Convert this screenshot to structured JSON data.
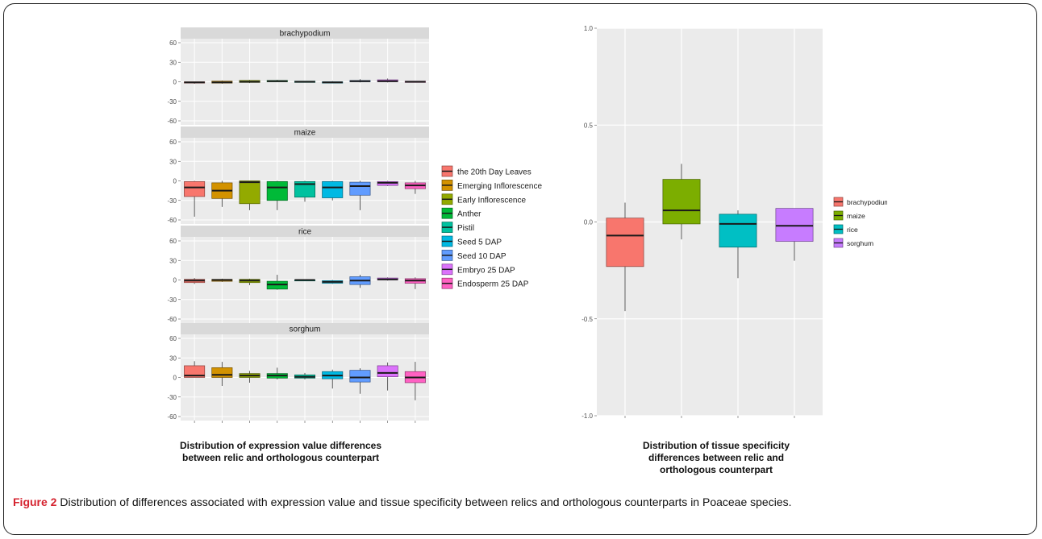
{
  "caption": {
    "number": "Figure 2",
    "text": " Distribution of differences associated with expression value and tissue specificity between relics and orthologous counterparts in Poaceae species."
  },
  "left_panel": {
    "subcaption_line1": "Distribution of expression value differences",
    "subcaption_line2": "between relic and orthologous counterpart"
  },
  "right_panel": {
    "subcaption_line1": "Distribution of tissue specificity",
    "subcaption_line2": "differences between relic and",
    "subcaption_line3": "orthologous counterpart"
  },
  "chart_data": [
    {
      "type": "box",
      "title": "",
      "facets": [
        "brachypodium",
        "maize",
        "rice",
        "sorghum"
      ],
      "categories": [
        "the 20th Day Leaves",
        "Emerging Inflorescence",
        "Early Inflorescence",
        "Anther",
        "Pistil",
        "Seed 5 DAP",
        "Seed 10 DAP",
        "Embryo 25 DAP",
        "Endosperm 25 DAP"
      ],
      "colors": [
        "#f8766d",
        "#d39200",
        "#93aa00",
        "#00ba38",
        "#00c19f",
        "#00b9e3",
        "#619cff",
        "#db72fb",
        "#ff61c3"
      ],
      "ylim": [
        -60,
        60
      ],
      "yticks": [
        60,
        30,
        0,
        -30,
        -60
      ],
      "xlabel": "",
      "ylabel": "",
      "legend_position": "right",
      "boxes": {
        "brachypodium": [
          [
            -3,
            -2,
            -1,
            0,
            0
          ],
          [
            -3,
            -2,
            -1,
            1,
            2
          ],
          [
            -2,
            -1,
            0,
            2,
            3
          ],
          [
            0,
            0,
            1,
            2,
            3
          ],
          [
            -1,
            -1,
            0,
            1,
            1
          ],
          [
            -2,
            -2,
            -1,
            0,
            1
          ],
          [
            -1,
            0,
            1,
            2,
            4
          ],
          [
            -1,
            0,
            1,
            3,
            5
          ],
          [
            -1,
            -1,
            0,
            1,
            1
          ]
        ],
        "maize": [
          [
            -55,
            -24,
            -10,
            -1,
            0
          ],
          [
            -40,
            -27,
            -15,
            -3,
            0
          ],
          [
            -45,
            -35,
            -2,
            0,
            0
          ],
          [
            -45,
            -30,
            -10,
            -1,
            0
          ],
          [
            -32,
            -25,
            -5,
            -1,
            0
          ],
          [
            -30,
            -26,
            -10,
            -1,
            0
          ],
          [
            -45,
            -22,
            -8,
            -2,
            0
          ],
          [
            -8,
            -7,
            -3,
            -1,
            0
          ],
          [
            -20,
            -12,
            -7,
            -3,
            0
          ]
        ],
        "rice": [
          [
            -6,
            -4,
            -1,
            1,
            3
          ],
          [
            -3,
            -2,
            0,
            1,
            2
          ],
          [
            -8,
            -4,
            -1,
            1,
            2
          ],
          [
            -15,
            -14,
            -7,
            -2,
            8
          ],
          [
            -1,
            -1,
            0,
            0,
            0
          ],
          [
            -6,
            -5,
            -3,
            -1,
            0
          ],
          [
            -12,
            -7,
            -1,
            5,
            8
          ],
          [
            -1,
            0,
            1,
            3,
            4
          ],
          [
            -14,
            -5,
            -1,
            2,
            4
          ]
        ],
        "sorghum": [
          [
            0,
            0,
            3,
            18,
            25
          ],
          [
            -13,
            0,
            4,
            15,
            24
          ],
          [
            -8,
            0,
            3,
            6,
            10
          ],
          [
            -3,
            -1,
            3,
            6,
            15
          ],
          [
            -3,
            -1,
            1,
            4,
            7
          ],
          [
            -17,
            -2,
            3,
            9,
            12
          ],
          [
            -25,
            -7,
            0,
            11,
            14
          ],
          [
            -20,
            1,
            7,
            18,
            23
          ],
          [
            -35,
            -8,
            0,
            9,
            24
          ]
        ]
      }
    },
    {
      "type": "box",
      "title": "",
      "categories": [
        "brachypodium",
        "maize",
        "rice",
        "sorghum"
      ],
      "colors": [
        "#f8766d",
        "#7cae00",
        "#00bfc4",
        "#c77cff"
      ],
      "ylim": [
        -1.0,
        1.0
      ],
      "yticks": [
        "1.0",
        "0.5",
        "0.0",
        "-0.5",
        "-1.0"
      ],
      "xlabel": "",
      "ylabel": "",
      "legend_position": "right",
      "boxes": [
        [
          -0.46,
          -0.23,
          -0.07,
          0.02,
          0.1
        ],
        [
          -0.09,
          -0.01,
          0.06,
          0.22,
          0.3
        ],
        [
          -0.29,
          -0.13,
          -0.01,
          0.04,
          0.06
        ],
        [
          -0.2,
          -0.1,
          -0.02,
          0.07,
          0.07
        ]
      ]
    }
  ]
}
